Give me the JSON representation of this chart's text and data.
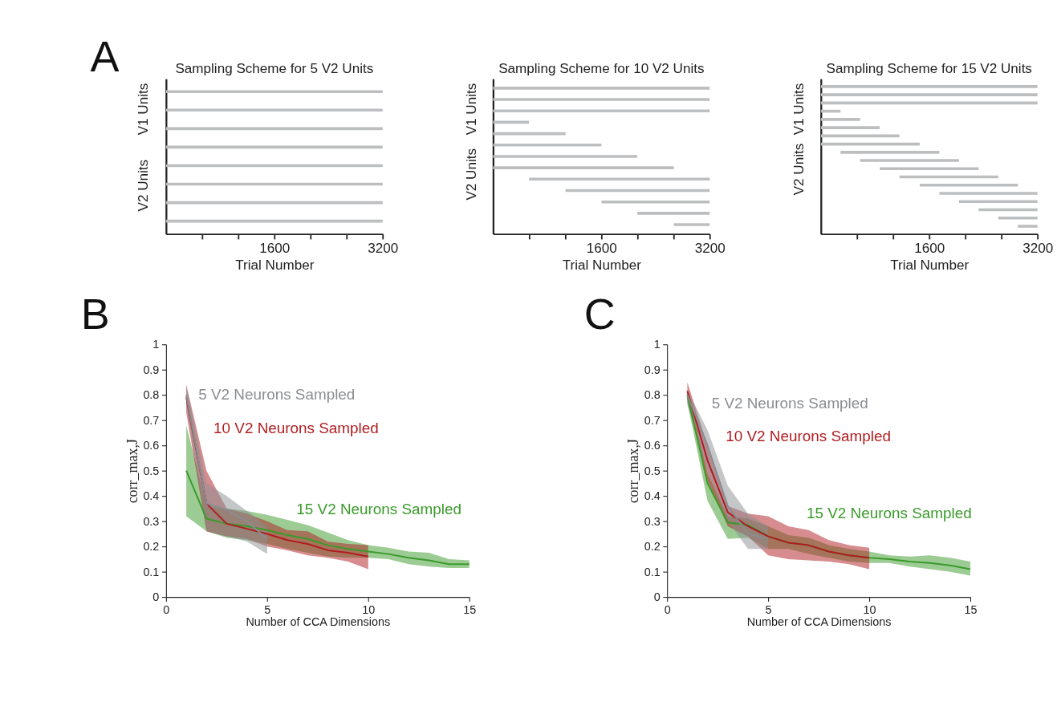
{
  "chart_data": [
    {
      "type": "bar",
      "orientation": "horizontal",
      "title": "Sampling Scheme for 5 V2 Units",
      "xlabel": "Trial Number",
      "color": "#bcbec0",
      "tick_labels": "x",
      "grid": false,
      "legend": false,
      "annotations": [
        "A",
        "V1 Units",
        "V2 Units"
      ],
      "categories": [
        null,
        null,
        null,
        null,
        null,
        null,
        null,
        null
      ],
      "values": [
        3200,
        3200,
        3200,
        3200,
        3200,
        3200,
        3200,
        3200
      ],
      "base": [
        0,
        0,
        0,
        0,
        0,
        0,
        0,
        0
      ],
      "xlim": [
        0,
        3200
      ],
      "xticks": [
        {
          "value": 533.33,
          "label": null
        },
        {
          "value": 1066.67,
          "label": null
        },
        1600,
        {
          "value": 2133.33,
          "label": null
        },
        {
          "value": 2666.67,
          "label": null
        },
        3200
      ]
    },
    {
      "type": "bar",
      "orientation": "horizontal",
      "title": "Sampling Scheme for 10 V2 Units",
      "xlabel": "Trial Number",
      "color": "#bcbec0",
      "tick_labels": "x",
      "grid": false,
      "legend": false,
      "annotations": [
        "V1 Units",
        "V2 Units"
      ],
      "categories": [
        null,
        null,
        null,
        null,
        null,
        null,
        null,
        null,
        null,
        null,
        null,
        null,
        null
      ],
      "values": [
        3200,
        3200,
        3200,
        530,
        1070,
        1600,
        2130,
        2670,
        2670,
        2130,
        1600,
        1070,
        530
      ],
      "base": [
        0,
        0,
        0,
        0,
        0,
        0,
        0,
        0,
        530,
        1070,
        1600,
        2130,
        2670
      ],
      "xlim": [
        0,
        3200
      ],
      "xticks": [
        {
          "value": 533.33,
          "label": null
        },
        {
          "value": 1066.67,
          "label": null
        },
        1600,
        {
          "value": 2133.33,
          "label": null
        },
        {
          "value": 2666.67,
          "label": null
        },
        3200
      ]
    },
    {
      "type": "bar",
      "orientation": "horizontal",
      "title": "Sampling Scheme for 15 V2 Units",
      "xlabel": "Trial Number",
      "color": "#bcbec0",
      "tick_labels": "x",
      "grid": false,
      "legend": false,
      "annotations": [
        "V1 Units",
        "V2 Units"
      ],
      "categories": [
        null,
        null,
        null,
        null,
        null,
        null,
        null,
        null,
        null,
        null,
        null,
        null,
        null,
        null,
        null,
        null,
        null,
        null
      ],
      "values": [
        3200,
        3200,
        3200,
        290,
        580,
        870,
        1160,
        1460,
        1460,
        1460,
        1460,
        1460,
        1450,
        1450,
        1160,
        870,
        580,
        290
      ],
      "base": [
        0,
        0,
        0,
        0,
        0,
        0,
        0,
        0,
        290,
        580,
        870,
        1160,
        1460,
        1750,
        2040,
        2330,
        2620,
        2910
      ],
      "xlim": [
        0,
        3200
      ],
      "xticks": [
        {
          "value": 533.33,
          "label": null
        },
        {
          "value": 1066.67,
          "label": null
        },
        1600,
        {
          "value": 2133.33,
          "label": null
        },
        {
          "value": 2666.67,
          "label": null
        },
        3200
      ]
    },
    {
      "type": "line",
      "xlabel": "Number of CCA Dimensions",
      "ylabel": "corr_max,J",
      "grid": false,
      "legend": false,
      "annotations": [
        "B"
      ],
      "xlim": [
        0,
        15
      ],
      "xticks": [
        0,
        5,
        10,
        15
      ],
      "ylim": [
        0,
        1
      ],
      "yticks": [
        0,
        0.1,
        0.2,
        0.3,
        0.4,
        0.5,
        0.6,
        0.7,
        0.8,
        0.9,
        1
      ],
      "series": [
        {
          "name": "5 V2 Neurons Sampled",
          "color": "#8a8d91",
          "x": [
            1,
            2,
            3,
            4,
            5
          ],
          "values": [
            0.8,
            0.37,
            0.345,
            0.3,
            0.23
          ],
          "lower": [
            0.76,
            0.26,
            0.24,
            0.22,
            0.17
          ],
          "upper": [
            0.84,
            0.45,
            0.4,
            0.34,
            0.28
          ]
        },
        {
          "name": "10 V2 Neurons Sampled",
          "color": "#b01c20",
          "x": [
            1,
            2,
            3,
            4,
            5,
            6,
            7,
            8,
            9,
            10
          ],
          "values": [
            0.79,
            0.37,
            0.29,
            0.27,
            0.25,
            0.225,
            0.21,
            0.185,
            0.175,
            0.16
          ],
          "lower": [
            0.73,
            0.26,
            0.24,
            0.23,
            0.2,
            0.185,
            0.165,
            0.155,
            0.14,
            0.11
          ],
          "upper": [
            0.84,
            0.5,
            0.35,
            0.33,
            0.3,
            0.265,
            0.26,
            0.22,
            0.21,
            0.205
          ]
        },
        {
          "name": "15 V2 Neurons Sampled",
          "color": "#3a9a2a",
          "x": [
            1,
            2,
            3,
            4,
            5,
            6,
            7,
            8,
            9,
            10,
            11,
            12,
            13,
            14,
            15
          ],
          "values": [
            0.5,
            0.31,
            0.29,
            0.28,
            0.265,
            0.245,
            0.23,
            0.205,
            0.19,
            0.18,
            0.17,
            0.155,
            0.145,
            0.13,
            0.13
          ],
          "lower": [
            0.32,
            0.26,
            0.235,
            0.225,
            0.21,
            0.19,
            0.175,
            0.16,
            0.155,
            0.155,
            0.15,
            0.13,
            0.12,
            0.115,
            0.115
          ],
          "upper": [
            0.68,
            0.36,
            0.35,
            0.34,
            0.325,
            0.305,
            0.285,
            0.255,
            0.225,
            0.205,
            0.195,
            0.18,
            0.175,
            0.15,
            0.145
          ]
        }
      ]
    },
    {
      "type": "line",
      "xlabel": "Number of CCA Dimensions",
      "ylabel": "corr_max,J",
      "grid": false,
      "legend": false,
      "annotations": [
        "C"
      ],
      "xlim": [
        0,
        15
      ],
      "xticks": [
        0,
        5,
        10,
        15
      ],
      "ylim": [
        0,
        1
      ],
      "yticks": [
        0,
        0.1,
        0.2,
        0.3,
        0.4,
        0.5,
        0.6,
        0.7,
        0.8,
        0.9,
        1
      ],
      "series": [
        {
          "name": "5 V2 Neurons Sampled",
          "color": "#8a8d91",
          "x": [
            1,
            2,
            3,
            4,
            5
          ],
          "values": [
            0.8,
            0.6,
            0.36,
            0.25,
            0.23
          ],
          "lower": [
            0.76,
            0.5,
            0.3,
            0.19,
            0.19
          ],
          "upper": [
            0.82,
            0.66,
            0.44,
            0.33,
            0.28
          ]
        },
        {
          "name": "10 V2 Neurons Sampled",
          "color": "#b01c20",
          "x": [
            1,
            2,
            3,
            4,
            5,
            6,
            7,
            8,
            9,
            10
          ],
          "values": [
            0.815,
            0.54,
            0.335,
            0.28,
            0.24,
            0.215,
            0.205,
            0.18,
            0.165,
            0.155
          ],
          "lower": [
            0.78,
            0.46,
            0.28,
            0.24,
            0.165,
            0.15,
            0.145,
            0.14,
            0.13,
            0.11
          ],
          "upper": [
            0.85,
            0.6,
            0.36,
            0.33,
            0.32,
            0.28,
            0.265,
            0.225,
            0.205,
            0.195
          ]
        },
        {
          "name": "15 V2 Neurons Sampled",
          "color": "#3a9a2a",
          "x": [
            1,
            2,
            3,
            4,
            5,
            6,
            7,
            8,
            9,
            10,
            11,
            12,
            13,
            14,
            15
          ],
          "values": [
            0.8,
            0.45,
            0.295,
            0.285,
            0.24,
            0.215,
            0.205,
            0.18,
            0.165,
            0.155,
            0.15,
            0.14,
            0.135,
            0.125,
            0.11
          ],
          "lower": [
            0.77,
            0.38,
            0.23,
            0.235,
            0.19,
            0.19,
            0.17,
            0.155,
            0.14,
            0.135,
            0.135,
            0.12,
            0.11,
            0.1,
            0.085
          ],
          "upper": [
            0.82,
            0.49,
            0.32,
            0.31,
            0.28,
            0.245,
            0.235,
            0.205,
            0.19,
            0.18,
            0.165,
            0.16,
            0.165,
            0.155,
            0.14
          ]
        }
      ]
    }
  ]
}
